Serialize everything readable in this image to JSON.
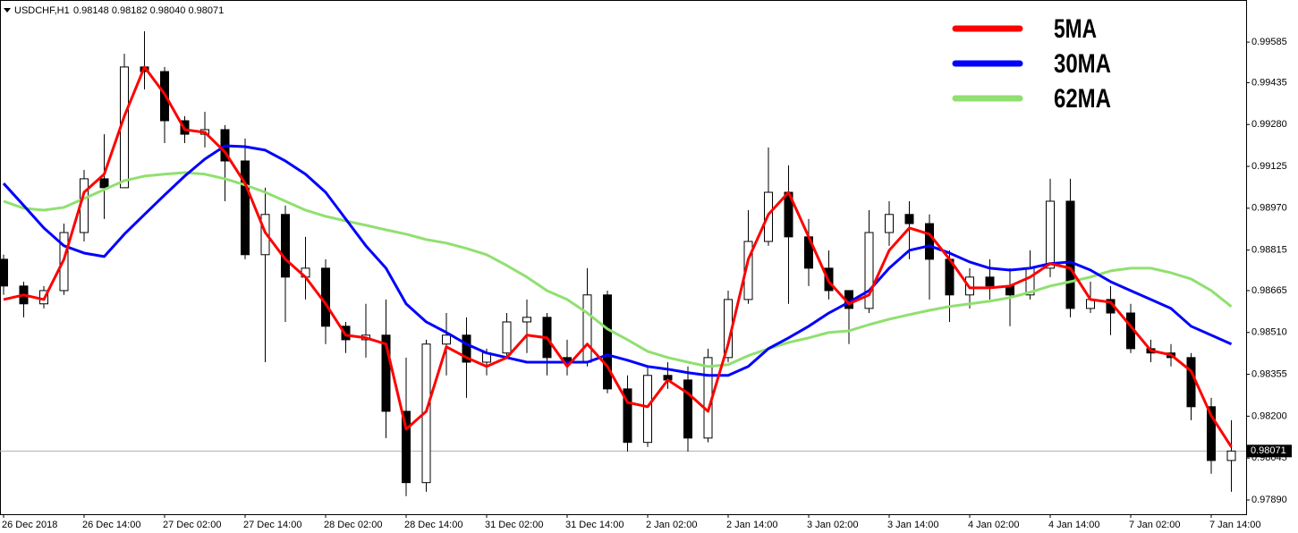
{
  "chart_data": {
    "type": "candlestick",
    "title": "USDCHF,H1",
    "subtitle": "0.98148 0.98182 0.98040 0.98071",
    "categories": [
      "26 Dec 2018",
      null,
      null,
      null,
      "26 Dec 14:00",
      null,
      null,
      null,
      "27 Dec 02:00",
      null,
      null,
      null,
      "27 Dec 14:00",
      null,
      null,
      null,
      "28 Dec 02:00",
      null,
      null,
      null,
      "28 Dec 14:00",
      null,
      null,
      null,
      "31 Dec 02:00",
      null,
      null,
      null,
      "31 Dec 14:00",
      null,
      null,
      null,
      "2 Jan 02:00",
      null,
      null,
      null,
      "2 Jan 14:00",
      null,
      null,
      null,
      "3 Jan 02:00",
      null,
      null,
      null,
      "3 Jan 14:00",
      null,
      null,
      null,
      "4 Jan 02:00",
      null,
      null,
      null,
      "4 Jan 14:00",
      null,
      null,
      null,
      "7 Jan 02:00",
      null,
      null,
      null,
      "7 Jan 14:00",
      null
    ],
    "open": [
      0.98781,
      0.98682,
      0.98616,
      0.98665,
      0.9888,
      0.99079,
      0.99046,
      0.99493,
      0.99476,
      0.99294,
      0.99244,
      0.99261,
      0.99145,
      0.98798,
      0.98947,
      0.98715,
      0.98748,
      0.98533,
      0.98483,
      0.985,
      0.98218,
      0.97954,
      0.98467,
      0.985,
      0.984,
      0.98434,
      0.98549,
      0.98566,
      0.98417,
      0.984,
      0.98649,
      0.98301,
      0.98103,
      0.98351,
      0.98334,
      0.98119,
      0.98417,
      0.98632,
      0.98847,
      0.99029,
      0.98864,
      0.98748,
      0.98665,
      0.98599,
      0.9888,
      0.98947,
      0.98913,
      0.98781,
      0.98649,
      0.98715,
      0.98682,
      0.98649,
      0.98748,
      0.98996,
      0.98599,
      0.98632,
      0.98582,
      0.9845,
      0.98434,
      0.98417,
      0.98235,
      0.98036
    ],
    "high": [
      0.98798,
      0.98698,
      0.98682,
      0.98913,
      0.99112,
      0.99244,
      0.99542,
      0.99625,
      0.99493,
      0.99311,
      0.99327,
      0.99278,
      0.99228,
      0.99046,
      0.9898,
      0.98864,
      0.98781,
      0.98549,
      0.98616,
      0.98632,
      0.98417,
      0.98483,
      0.98582,
      0.98566,
      0.9845,
      0.98582,
      0.98632,
      0.98582,
      0.98483,
      0.98748,
      0.98665,
      0.98351,
      0.98384,
      0.984,
      0.98384,
      0.9845,
      0.98665,
      0.98963,
      0.99195,
      0.99129,
      0.9893,
      0.98814,
      0.98665,
      0.98963,
      0.98996,
      0.98996,
      0.98947,
      0.98814,
      0.98748,
      0.98781,
      0.98748,
      0.98814,
      0.99079,
      0.99079,
      0.98698,
      0.98682,
      0.98616,
      0.98483,
      0.98467,
      0.98434,
      0.98268,
      0.98185
    ],
    "low": [
      0.98649,
      0.98566,
      0.98599,
      0.98649,
      0.98847,
      0.9893,
      0.99046,
      0.9941,
      0.99211,
      0.99211,
      0.99195,
      0.98996,
      0.98781,
      0.984,
      0.98549,
      0.98632,
      0.98467,
      0.98434,
      0.98417,
      0.98119,
      0.97904,
      0.9792,
      0.98351,
      0.98268,
      0.98351,
      0.98417,
      0.98434,
      0.98351,
      0.98351,
      0.98384,
      0.98285,
      0.98069,
      0.98086,
      0.98301,
      0.98069,
      0.98103,
      0.984,
      0.98616,
      0.98831,
      0.98616,
      0.98682,
      0.98632,
      0.98467,
      0.98582,
      0.98831,
      0.98781,
      0.98632,
      0.98549,
      0.98599,
      0.98632,
      0.98533,
      0.98632,
      0.98715,
      0.98566,
      0.98582,
      0.985,
      0.98434,
      0.984,
      0.98384,
      0.98185,
      0.97987,
      0.9792
    ],
    "close": [
      0.98682,
      0.98616,
      0.98665,
      0.9888,
      0.99079,
      0.99046,
      0.99493,
      0.99476,
      0.99294,
      0.99244,
      0.99261,
      0.99145,
      0.98798,
      0.98947,
      0.98715,
      0.98748,
      0.98533,
      0.98483,
      0.985,
      0.98218,
      0.97954,
      0.98467,
      0.985,
      0.984,
      0.98434,
      0.98549,
      0.98566,
      0.98417,
      0.984,
      0.98649,
      0.98301,
      0.98103,
      0.98351,
      0.98334,
      0.98119,
      0.98417,
      0.98632,
      0.98847,
      0.99029,
      0.98864,
      0.98748,
      0.98665,
      0.98599,
      0.9888,
      0.98947,
      0.98913,
      0.98781,
      0.98649,
      0.98715,
      0.98682,
      0.98649,
      0.98748,
      0.98996,
      0.98599,
      0.98632,
      0.98582,
      0.9845,
      0.98434,
      0.98417,
      0.98235,
      0.98036,
      0.98071
    ],
    "series": [
      {
        "name": "5MA",
        "color": "#ff0000",
        "values": [
          0.98632,
          0.98649,
          0.98632,
          0.98781,
          0.99029,
          0.99096,
          0.99311,
          0.99493,
          0.99393,
          0.99261,
          0.99251,
          0.99178,
          0.99062,
          0.9888,
          0.98781,
          0.98715,
          0.98616,
          0.985,
          0.9849,
          0.98467,
          0.98152,
          0.98218,
          0.98457,
          0.98417,
          0.98384,
          0.98417,
          0.985,
          0.9849,
          0.98384,
          0.98467,
          0.98384,
          0.98251,
          0.98235,
          0.98334,
          0.98285,
          0.98218,
          0.98467,
          0.98781,
          0.98947,
          0.99029,
          0.98864,
          0.98698,
          0.98616,
          0.98649,
          0.98814,
          0.98897,
          0.98874,
          0.98781,
          0.98675,
          0.98675,
          0.98682,
          0.98715,
          0.98765,
          0.98748,
          0.98632,
          0.98622,
          0.98533,
          0.98443,
          0.98427,
          0.98367,
          0.98202,
          0.98086
        ]
      },
      {
        "name": "30MA",
        "color": "#0000ff",
        "values": [
          0.99062,
          0.9898,
          0.98897,
          0.98831,
          0.98804,
          0.98791,
          0.98874,
          0.98947,
          0.99019,
          0.99089,
          0.99152,
          0.99201,
          0.99198,
          0.99185,
          0.99145,
          0.99096,
          0.99029,
          0.9893,
          0.98831,
          0.98748,
          0.98616,
          0.98549,
          0.9851,
          0.98467,
          0.98434,
          0.98417,
          0.984,
          0.984,
          0.984,
          0.984,
          0.98427,
          0.98407,
          0.98384,
          0.98374,
          0.98361,
          0.98351,
          0.98351,
          0.98384,
          0.9845,
          0.9849,
          0.98533,
          0.98582,
          0.98622,
          0.98665,
          0.98748,
          0.98814,
          0.98831,
          0.98804,
          0.98771,
          0.98748,
          0.98741,
          0.98748,
          0.98765,
          0.98771,
          0.98741,
          0.98698,
          0.98665,
          0.98632,
          0.98599,
          0.98533,
          0.985,
          0.98467
        ]
      },
      {
        "name": "62MA",
        "color": "#90e070",
        "values": [
          0.98996,
          0.9897,
          0.98963,
          0.98973,
          0.99006,
          0.99039,
          0.99072,
          0.99089,
          0.99096,
          0.99102,
          0.99096,
          0.99079,
          0.99056,
          0.99029,
          0.98996,
          0.98963,
          0.9894,
          0.98923,
          0.98907,
          0.9889,
          0.98874,
          0.98854,
          0.98841,
          0.98821,
          0.98798,
          0.98758,
          0.98715,
          0.98665,
          0.98632,
          0.98582,
          0.98523,
          0.98483,
          0.9844,
          0.98417,
          0.984,
          0.98384,
          0.98391,
          0.98424,
          0.9845,
          0.98473,
          0.9849,
          0.9851,
          0.98516,
          0.98539,
          0.98559,
          0.98576,
          0.98592,
          0.98606,
          0.98616,
          0.98626,
          0.98639,
          0.98659,
          0.98682,
          0.98698,
          0.98715,
          0.98738,
          0.98748,
          0.98748,
          0.98731,
          0.98708,
          0.98665,
          0.98606
        ]
      }
    ],
    "current_price": 0.98071,
    "ylim": [
      0.97837,
      0.99741
    ],
    "yticks": [
      0.99585,
      0.99435,
      {
        "value": 0.9928,
        "label": "0.99280"
      },
      0.99125,
      {
        "value": 0.9897,
        "label": "0.98970"
      },
      0.98815,
      0.98665,
      {
        "value": 0.9851,
        "label": "0.98510"
      },
      0.98355,
      {
        "value": 0.982,
        "label": "0.98200"
      },
      0.98045,
      {
        "value": 0.9789,
        "label": "0.97890"
      }
    ],
    "grid": false,
    "bull_color": "#ffffff",
    "bear_color": "#000000",
    "legend": "top-right"
  }
}
